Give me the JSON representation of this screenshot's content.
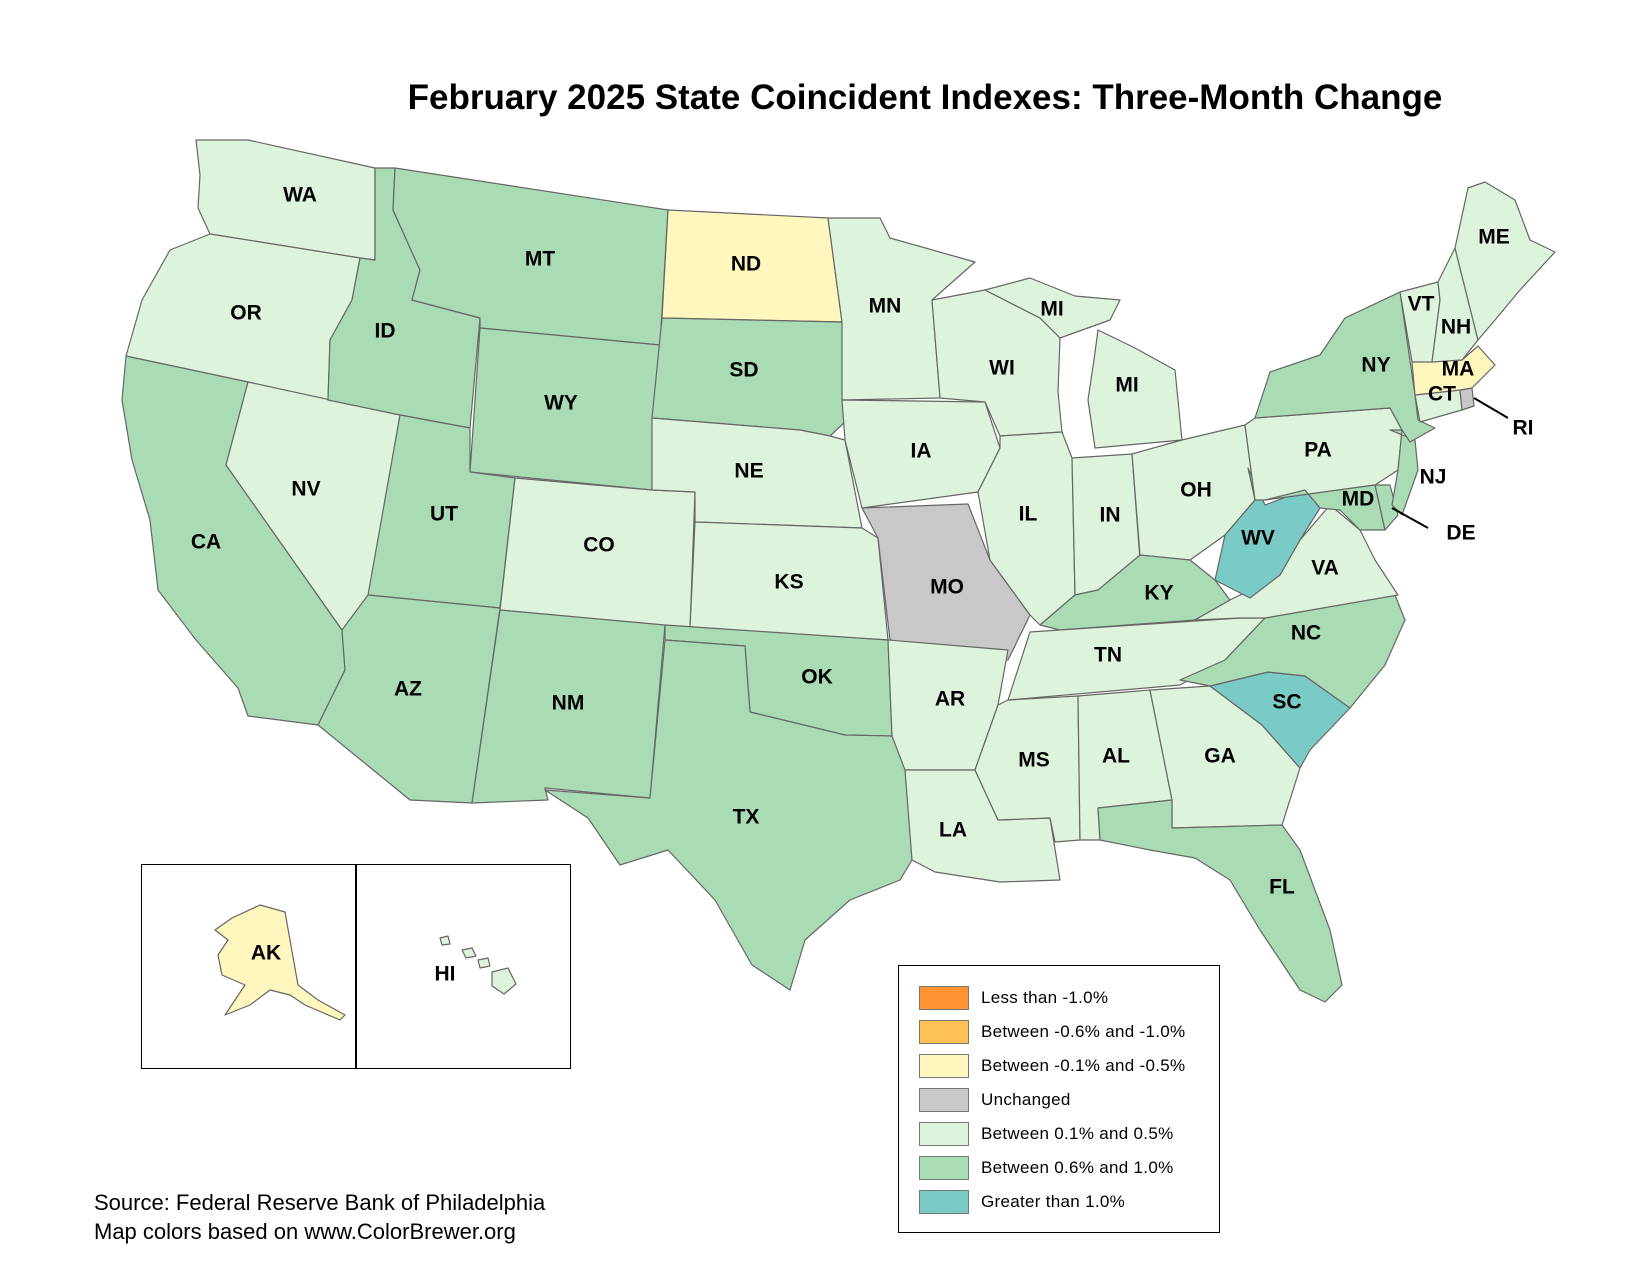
{
  "title": "February 2025 State Coincident Indexes: Three-Month Change",
  "source": {
    "line1": "Source: Federal Reserve Bank of Philadelphia",
    "line2": "Map colors based on www.ColorBrewer.org"
  },
  "legend": [
    {
      "label": "Less than -1.0%",
      "color": "#fd9331"
    },
    {
      "label": "Between -0.6% and -1.0%",
      "color": "#fdc253"
    },
    {
      "label": "Between -0.1% and -0.5%",
      "color": "#fff7bd"
    },
    {
      "label": "Unchanged",
      "color": "#c8c8c8"
    },
    {
      "label": "Between 0.1% and 0.5%",
      "color": "#def3db"
    },
    {
      "label": "Between 0.6% and 1.0%",
      "color": "#a9dbb5"
    },
    {
      "label": "Greater than 1.0%",
      "color": "#7acac6"
    }
  ],
  "states": {
    "WA": {
      "label": "WA",
      "category": 4
    },
    "OR": {
      "label": "OR",
      "category": 4
    },
    "CA": {
      "label": "CA",
      "category": 5
    },
    "NV": {
      "label": "NV",
      "category": 4
    },
    "ID": {
      "label": "ID",
      "category": 5
    },
    "MT": {
      "label": "MT",
      "category": 5
    },
    "WY": {
      "label": "WY",
      "category": 5
    },
    "UT": {
      "label": "UT",
      "category": 5
    },
    "AZ": {
      "label": "AZ",
      "category": 5
    },
    "CO": {
      "label": "CO",
      "category": 4
    },
    "NM": {
      "label": "NM",
      "category": 5
    },
    "ND": {
      "label": "ND",
      "category": 2
    },
    "SD": {
      "label": "SD",
      "category": 5
    },
    "NE": {
      "label": "NE",
      "category": 4
    },
    "KS": {
      "label": "KS",
      "category": 4
    },
    "OK": {
      "label": "OK",
      "category": 5
    },
    "TX": {
      "label": "TX",
      "category": 5
    },
    "MN": {
      "label": "MN",
      "category": 4
    },
    "IA": {
      "label": "IA",
      "category": 4
    },
    "MO": {
      "label": "MO",
      "category": 3
    },
    "AR": {
      "label": "AR",
      "category": 4
    },
    "LA": {
      "label": "LA",
      "category": 4
    },
    "WI": {
      "label": "WI",
      "category": 4
    },
    "IL": {
      "label": "IL",
      "category": 4
    },
    "MI": {
      "label": "MI",
      "category": 4
    },
    "MI_UP": {
      "label": "MI",
      "category": 4
    },
    "IN": {
      "label": "IN",
      "category": 4
    },
    "OH": {
      "label": "OH",
      "category": 4
    },
    "KY": {
      "label": "KY",
      "category": 5
    },
    "TN": {
      "label": "TN",
      "category": 4
    },
    "MS": {
      "label": "MS",
      "category": 4
    },
    "AL": {
      "label": "AL",
      "category": 4
    },
    "GA": {
      "label": "GA",
      "category": 4
    },
    "FL": {
      "label": "FL",
      "category": 5
    },
    "SC": {
      "label": "SC",
      "category": 6
    },
    "NC": {
      "label": "NC",
      "category": 5
    },
    "VA": {
      "label": "VA",
      "category": 4
    },
    "WV": {
      "label": "WV",
      "category": 6
    },
    "MD": {
      "label": "MD",
      "category": 5
    },
    "DE": {
      "label": "DE",
      "category": 5
    },
    "NJ": {
      "label": "NJ",
      "category": 5
    },
    "PA": {
      "label": "PA",
      "category": 4
    },
    "NY": {
      "label": "NY",
      "category": 5
    },
    "CT": {
      "label": "CT",
      "category": 4
    },
    "RI": {
      "label": "RI",
      "category": 3
    },
    "MA": {
      "label": "MA",
      "category": 2
    },
    "VT": {
      "label": "VT",
      "category": 4
    },
    "NH": {
      "label": "NH",
      "category": 4
    },
    "ME": {
      "label": "ME",
      "category": 4
    },
    "AK": {
      "label": "AK",
      "category": 2
    },
    "HI": {
      "label": "HI",
      "category": 4
    }
  }
}
